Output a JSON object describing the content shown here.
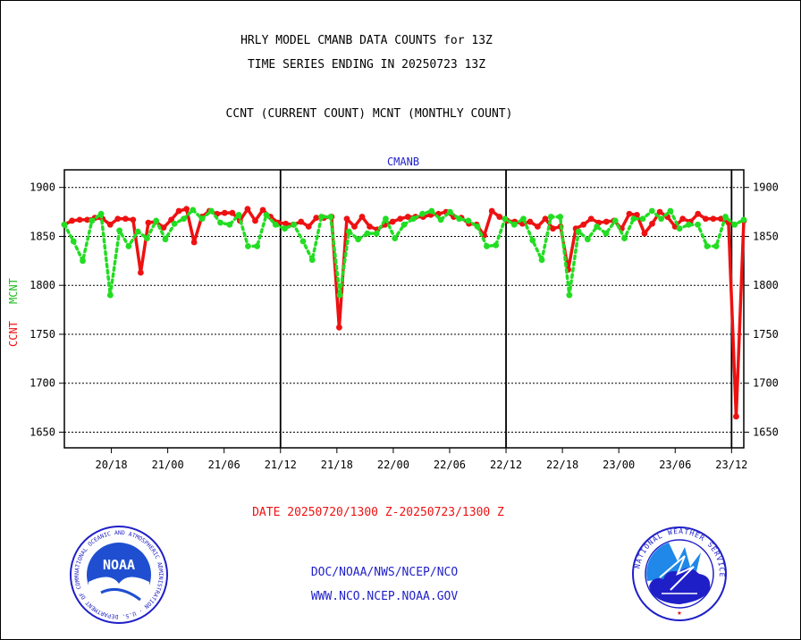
{
  "header": {
    "line1": "HRLY MODEL CMANB DATA COUNTS for 13Z",
    "line2": "TIME SERIES ENDING IN 20250723 13Z",
    "line3": "CCNT (CURRENT COUNT) MCNT (MONTHLY COUNT)"
  },
  "footer": {
    "date_range": "DATE 20250720/1300 Z-20250723/1300 Z",
    "link1": "DOC/NOAA/NWS/NCEP/NCO",
    "link2": "WWW.NCO.NCEP.NOAA.GOV"
  },
  "logos": {
    "left_icon": "noaa-logo",
    "left_text": "NOAA",
    "left_ring": "NATIONAL OCEANIC AND ATMOSPHERIC ADMINISTRATION · U.S. DEPARTMENT OF COMMERCE",
    "right_icon": "nws-logo",
    "right_ring": "NATIONAL WEATHER SERVICE"
  },
  "chart_data": {
    "type": "line",
    "title": "CMANB",
    "ylabel_left": "CCNT",
    "ylabel_right": "MCNT",
    "ylim": [
      1634,
      1918
    ],
    "yticks": [
      1650,
      1700,
      1750,
      1800,
      1850,
      1900
    ],
    "x_start_hours_label": "20/13",
    "xticks": [
      {
        "label": "20/18",
        "hour": 5
      },
      {
        "label": "21/00",
        "hour": 11
      },
      {
        "label": "21/06",
        "hour": 17
      },
      {
        "label": "21/12",
        "hour": 23
      },
      {
        "label": "21/18",
        "hour": 29
      },
      {
        "label": "22/00",
        "hour": 35
      },
      {
        "label": "22/06",
        "hour": 41
      },
      {
        "label": "22/12",
        "hour": 47
      },
      {
        "label": "22/18",
        "hour": 53
      },
      {
        "label": "23/00",
        "hour": 59
      },
      {
        "label": "23/06",
        "hour": 65
      },
      {
        "label": "23/12",
        "hour": 71
      }
    ],
    "xlim": [
      0,
      72.3
    ],
    "day_lines": [
      23,
      47,
      71
    ],
    "grid": true,
    "colors": {
      "ccnt": "#ee1111",
      "mcnt": "#22dd22",
      "title": "#2222cc"
    },
    "series": [
      {
        "key": "ccnt",
        "name": "CCNT",
        "style": "solid",
        "values": [
          1862,
          1866,
          1867,
          1867,
          1869,
          1868,
          1862,
          1868,
          1868,
          1867,
          1813,
          1864,
          1865,
          1859,
          1867,
          1876,
          1878,
          1844,
          1870,
          1876,
          1873,
          1874,
          1874,
          1866,
          1878,
          1866,
          1877,
          1870,
          1864,
          1863,
          1862,
          1865,
          1860,
          1869,
          1869,
          1870,
          1757,
          1868,
          1860,
          1870,
          1860,
          1857,
          1862,
          1865,
          1868,
          1870,
          1870,
          1870,
          1872,
          1873,
          1875,
          1870,
          1869,
          1863,
          1862,
          1851,
          1876,
          1870,
          1866,
          1865,
          1863,
          1865,
          1860,
          1868,
          1858,
          1860,
          1816,
          1858,
          1862,
          1868,
          1864,
          1865,
          1866,
          1858,
          1873,
          1872,
          1853,
          1863,
          1875,
          1870,
          1860,
          1868,
          1865,
          1873,
          1868,
          1868,
          1868,
          1864,
          1666,
          1866
        ]
      },
      {
        "key": "mcnt",
        "name": "MCNT",
        "style": "dotted",
        "values": [
          1862,
          1845,
          1825,
          1866,
          1873,
          1790,
          1856,
          1840,
          1855,
          1848,
          1866,
          1847,
          1863,
          1868,
          1877,
          1868,
          1876,
          1864,
          1862,
          1872,
          1840,
          1840,
          1872,
          1862,
          1858,
          1862,
          1845,
          1826,
          1870,
          1870,
          1790,
          1855,
          1847,
          1853,
          1853,
          1868,
          1848,
          1862,
          1868,
          1873,
          1876,
          1867,
          1875,
          1868,
          1866,
          1860,
          1840,
          1841,
          1868,
          1862,
          1868,
          1846,
          1826,
          1870,
          1870,
          1790,
          1855,
          1847,
          1860,
          1853,
          1866,
          1848,
          1868,
          1868,
          1876,
          1868,
          1876,
          1858,
          1862,
          1862,
          1840,
          1840,
          1870,
          1862,
          1867
        ]
      }
    ]
  }
}
